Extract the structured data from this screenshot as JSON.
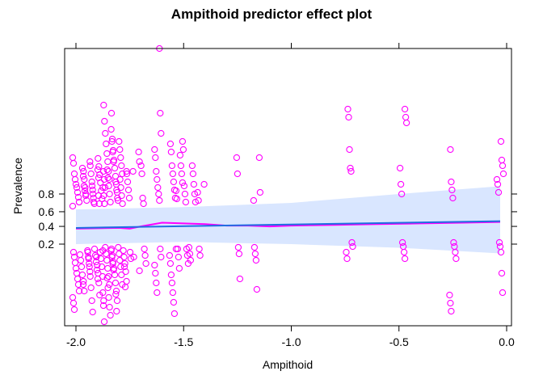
{
  "chart_data": {
    "type": "scatter",
    "title": "Ampithoid predictor effect plot",
    "xlabel": "Ampithoid",
    "ylabel": "Prevalence",
    "xlim": [
      -2.05,
      0.05
    ],
    "y_scale": "logit",
    "x_ticks": [
      -2.0,
      -1.5,
      -1.0,
      -0.5,
      0.0
    ],
    "x_tick_labels": [
      "-2.0",
      "-1.5",
      "-1.0",
      "-0.5",
      "0.0"
    ],
    "y_ticks": [
      0.2,
      0.4,
      0.6,
      0.8
    ],
    "y_tick_labels": [
      "0.2",
      "0.4",
      "0.6",
      "0.8"
    ],
    "grid": false,
    "fit_line": {
      "x": [
        -2.0,
        -0.03
      ],
      "y": [
        0.38,
        0.47
      ]
    },
    "confidence_band": {
      "x": [
        -2.0,
        -1.5,
        -1.0,
        -0.5,
        -0.03
      ],
      "lower": [
        0.2,
        0.22,
        0.2,
        0.17,
        0.13
      ],
      "upper": [
        0.63,
        0.66,
        0.71,
        0.8,
        0.86
      ]
    },
    "smoother": {
      "x": [
        -2.0,
        -1.9,
        -1.8,
        -1.75,
        -1.7,
        -1.6,
        -1.5,
        -1.4,
        -1.3,
        -1.2,
        -1.1,
        -1.0,
        -0.8,
        -0.6,
        -0.4,
        -0.2,
        -0.03
      ],
      "y": [
        0.37,
        0.375,
        0.38,
        0.37,
        0.4,
        0.45,
        0.44,
        0.43,
        0.41,
        0.41,
        0.4,
        0.41,
        0.42,
        0.43,
        0.44,
        0.45,
        0.46
      ]
    },
    "point_groups": [
      {
        "x": -2.0,
        "upper_px": [
          195,
          202,
          215,
          222,
          228,
          232,
          238,
          244,
          250,
          255
        ],
        "lower_px": [
          312,
          318,
          325,
          332,
          338,
          345,
          352,
          360,
          368,
          375,
          383
        ]
      },
      {
        "x": -1.97,
        "upper_px": [
          208,
          218,
          230,
          236,
          242,
          250
        ],
        "lower_px": [
          315,
          322,
          330,
          340,
          352
        ]
      },
      {
        "x": -1.95,
        "upper_px": [
          200,
          212,
          222,
          232,
          240,
          248
        ],
        "lower_px": [
          310,
          318,
          326,
          336,
          348,
          360
        ]
      },
      {
        "x": -1.93,
        "upper_px": [
          205,
          215,
          225,
          235,
          245,
          252
        ],
        "lower_px": [
          312,
          320,
          330,
          342,
          356,
          372,
          386
        ]
      },
      {
        "x": -1.91,
        "upper_px": [
          210,
          220,
          230,
          240,
          250
        ],
        "lower_px": [
          308,
          316,
          324,
          334,
          345
        ]
      },
      {
        "x": -1.89,
        "upper_px": [
          196,
          206,
          216,
          226,
          236,
          246
        ],
        "lower_px": [
          310,
          318,
          328,
          338,
          350,
          365
        ]
      },
      {
        "x": -1.88,
        "upper_px": [
          212,
          222,
          232,
          242,
          252
        ],
        "lower_px": [
          312,
          320,
          330,
          342,
          378,
          398
        ]
      },
      {
        "x": -1.86,
        "upper_px": [
          130,
          150,
          165,
          178,
          190,
          200,
          212,
          222,
          232,
          242,
          252
        ],
        "lower_px": [
          306,
          314,
          322,
          332,
          342,
          352,
          362,
          372
        ]
      },
      {
        "x": -1.84,
        "upper_px": [
          160,
          175,
          188,
          200,
          210,
          220,
          230,
          240,
          250
        ],
        "lower_px": [
          310,
          318,
          326,
          334,
          344,
          356,
          368,
          380,
          390
        ]
      },
      {
        "x": -1.82,
        "upper_px": [
          140,
          172,
          186,
          198,
          208,
          218,
          228,
          238,
          248
        ],
        "lower_px": [
          308,
          316,
          324,
          332,
          340,
          350,
          360,
          372
        ]
      },
      {
        "x": -1.8,
        "upper_px": [
          175,
          185,
          195,
          205,
          215,
          225,
          235,
          245
        ],
        "lower_px": [
          306,
          314,
          322,
          330,
          340,
          352,
          364,
          385
        ]
      },
      {
        "x": -1.78,
        "upper_px": [
          212,
          222,
          232,
          242,
          252
        ],
        "lower_px": [
          310,
          318,
          326,
          336,
          348
        ]
      },
      {
        "x": -1.76,
        "upper_px": [
          215,
          225,
          235,
          245
        ],
        "lower_px": [
          312,
          320,
          330,
          355
        ]
      },
      {
        "x": -1.72,
        "upper_px": [
          188,
          200,
          212
        ],
        "lower_px": [
          318
        ]
      },
      {
        "x": -1.69,
        "upper_px": [
          205,
          215,
          245,
          252
        ],
        "lower_px": [
          308,
          316,
          326,
          335
        ]
      },
      {
        "x": -1.62,
        "upper_px": [
          60,
          140,
          165,
          185,
          195,
          212,
          222,
          232,
          240,
          248
        ],
        "lower_px": [
          308,
          318,
          328,
          338,
          350,
          362
        ]
      },
      {
        "x": -1.55,
        "upper_px": [
          178,
          188,
          205,
          215,
          225,
          235,
          245
        ],
        "lower_px": [
          308,
          316,
          326,
          340,
          350,
          362,
          374,
          388
        ]
      },
      {
        "x": -1.52,
        "upper_px": [
          192,
          205,
          215,
          226,
          236,
          246
        ],
        "lower_px": [
          308,
          318,
          332
        ]
      },
      {
        "x": -1.49,
        "upper_px": [
          175,
          185,
          230,
          240,
          250
        ],
        "lower_px": [
          308,
          316,
          326
        ]
      },
      {
        "x": -1.46,
        "upper_px": [
          205,
          215,
          228,
          240,
          250
        ],
        "lower_px": [
          306,
          314,
          322
        ]
      },
      {
        "x": -1.42,
        "upper_px": [
          228,
          238,
          248
        ],
        "lower_px": [
          308,
          316
        ]
      },
      {
        "x": -1.25,
        "upper_px": [
          195,
          215
        ],
        "lower_px": [
          306,
          314,
          345
        ]
      },
      {
        "x": -1.16,
        "upper_px": [
          195,
          238,
          248
        ],
        "lower_px": [
          306,
          314,
          322,
          358
        ]
      },
      {
        "x": -0.73,
        "upper_px": [
          135,
          145,
          185,
          208,
          212
        ],
        "lower_px": [
          300,
          305,
          312,
          320
        ]
      },
      {
        "x": -0.48,
        "upper_px": [
          135,
          145,
          152,
          208,
          228,
          240
        ],
        "lower_px": [
          300,
          305,
          312,
          320
        ]
      },
      {
        "x": -0.25,
        "upper_px": [
          185,
          225,
          235,
          245
        ],
        "lower_px": [
          300,
          305,
          312,
          320,
          365,
          375,
          385
        ]
      },
      {
        "x": -0.03,
        "upper_px": [
          175,
          198,
          205,
          215,
          222,
          228,
          238
        ],
        "lower_px": [
          300,
          305,
          312,
          338,
          362
        ]
      }
    ]
  }
}
